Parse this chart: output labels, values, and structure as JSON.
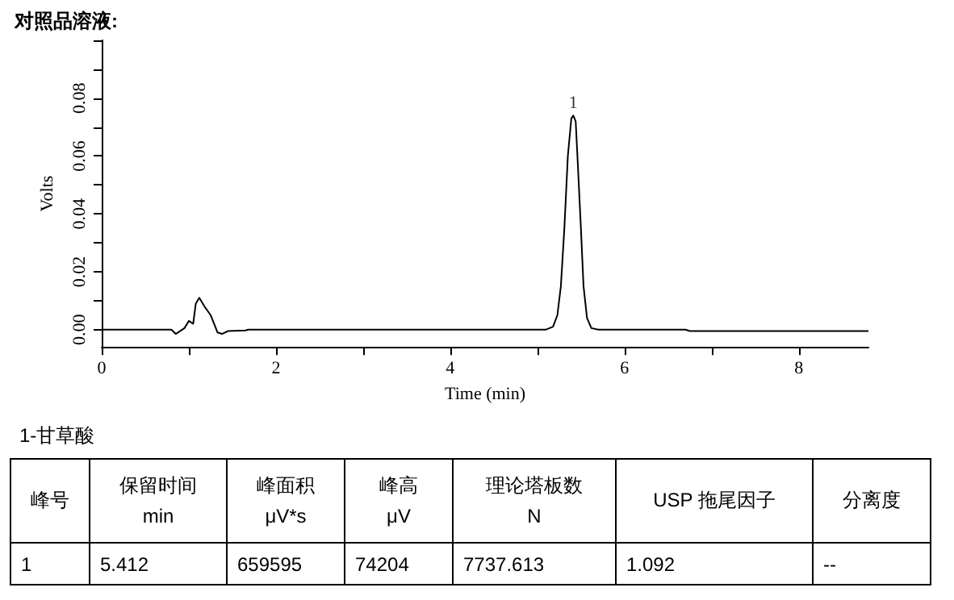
{
  "chart_data": [
    {
      "type": "line",
      "title": "对照品溶液:",
      "xlabel": "Time (min)",
      "ylabel": "Volts",
      "color": "#000000",
      "x": [
        0,
        0.8,
        0.85,
        0.95,
        1.0,
        1.05,
        1.08,
        1.12,
        1.18,
        1.25,
        1.33,
        1.38,
        1.45,
        1.65,
        1.68,
        5.1,
        5.18,
        5.23,
        5.27,
        5.31,
        5.35,
        5.39,
        5.412,
        5.44,
        5.46,
        5.5,
        5.53,
        5.57,
        5.62,
        5.7,
        6.7,
        6.75,
        8.8
      ],
      "values": [
        0,
        0,
        -0.0015,
        0.0005,
        0.003,
        0.002,
        0.009,
        0.011,
        0.008,
        0.005,
        -0.001,
        -0.0015,
        -0.0005,
        -0.0003,
        0,
        0,
        0.001,
        0.005,
        0.015,
        0.035,
        0.06,
        0.073,
        0.074,
        0.072,
        0.06,
        0.035,
        0.015,
        0.004,
        0.0005,
        0,
        0,
        -0.0005,
        -0.0005
      ],
      "xlim": [
        0,
        8.8
      ],
      "xticks": [
        0,
        {
          "value": 1,
          "label": null
        },
        2,
        {
          "value": 3,
          "label": null
        },
        4,
        {
          "value": 5,
          "label": null
        },
        6,
        {
          "value": 7,
          "label": null
        },
        8
      ],
      "ylim": [
        -0.006,
        0.1
      ],
      "yticks": [
        {
          "value": 0,
          "label": "0.00"
        },
        {
          "value": 0.01,
          "label": null
        },
        {
          "value": 0.02,
          "label": "0.02"
        },
        {
          "value": 0.03,
          "label": null
        },
        {
          "value": 0.04,
          "label": "0.04"
        },
        {
          "value": 0.05,
          "label": null
        },
        {
          "value": 0.06,
          "label": "0.06"
        },
        {
          "value": 0.07,
          "label": null
        },
        {
          "value": 0.08,
          "label": "0.08"
        },
        {
          "value": 0.09,
          "label": null
        },
        {
          "value": 0.1,
          "label": null
        }
      ],
      "grid": false,
      "marker": "none",
      "line_style": "solid",
      "annotations": [
        {
          "text": "1",
          "x": 5.412,
          "y": 0.074
        }
      ]
    },
    {
      "type": "other",
      "title": "1-甘草酸",
      "categories": [
        "峰号",
        "保留时间\nmin",
        "峰面积\nμV*s",
        "峰高\nμV",
        "理论塔板数\nN",
        "USP 拖尾因子",
        "分离度"
      ],
      "value_labels": [
        "1",
        "5.412",
        "659595",
        "74204",
        "7737.613",
        "1.092",
        "--"
      ]
    }
  ]
}
